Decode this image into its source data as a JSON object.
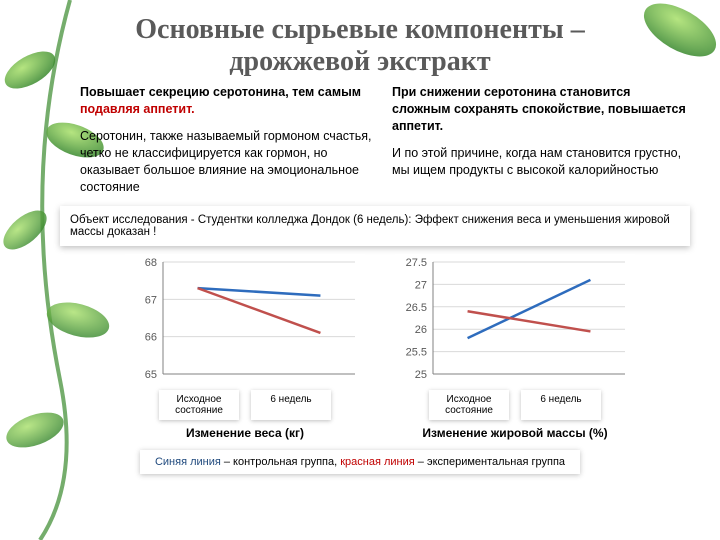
{
  "title_line1": "Основные сырьевые компоненты –",
  "title_line2": "дрожжевой экстракт",
  "left_col": {
    "para1_bold": "Повышает секрецию серотонина, тем самым ",
    "para1_red": "подавляя аппетит.",
    "para2": "Серотонин, также называемый гормоном счастья, четко не классифицируется как гормон, но оказывает большое влияние на эмоциональное состояние"
  },
  "right_col": {
    "para1_bold": "При снижении серотонина становится сложным сохранять спокойствие, повышается аппетит.",
    "para2": "И по этой причине, когда нам становится грустно, мы  ищем продукты с высокой калорийностью"
  },
  "study_bar": "Объект исследования - Студентки колледжа Дондок (6 недель):   Эффект снижения веса и уменьшения жировой массы доказан !",
  "chart1": {
    "type": "line",
    "title": "Изменение   веса (кг)",
    "ylim": [
      65,
      68
    ],
    "ytick_step": 1,
    "yticks": [
      65,
      66,
      67,
      68
    ],
    "x_categories": [
      "Исходное состояние",
      "6 недель"
    ],
    "series": [
      {
        "name": "control",
        "color": "#2e6cbd",
        "width": 2.5,
        "values": [
          67.3,
          67.1
        ]
      },
      {
        "name": "experimental",
        "color": "#c0504d",
        "width": 2.5,
        "values": [
          67.3,
          66.1
        ]
      }
    ],
    "axis_color": "#808080",
    "grid_color": "#d9d9d9",
    "background_color": "#ffffff",
    "tick_fontsize": 11,
    "label_fontsize": 10
  },
  "chart2": {
    "type": "line",
    "title": "Изменение жировой массы (%)",
    "ylim": [
      25,
      27.5
    ],
    "ytick_step": 0.5,
    "yticks": [
      25,
      25.5,
      26,
      26.5,
      27,
      27.5
    ],
    "x_categories": [
      "Исходное состояние",
      "6 недель"
    ],
    "series": [
      {
        "name": "control",
        "color": "#2e6cbd",
        "width": 2.5,
        "values": [
          25.8,
          27.1
        ]
      },
      {
        "name": "experimental",
        "color": "#c0504d",
        "width": 2.5,
        "values": [
          26.4,
          25.95
        ]
      }
    ],
    "axis_color": "#808080",
    "grid_color": "#d9d9d9",
    "background_color": "#ffffff",
    "tick_fontsize": 11,
    "label_fontsize": 10
  },
  "x_label_baseline": "Исходное\nсостояние",
  "x_label_6week": "6 недель",
  "legend": {
    "blue_label": "Синяя линия",
    "mid1": " – контрольная группа, ",
    "red_label": "красная линия",
    "mid2": " – экспериментальная группа"
  },
  "colors": {
    "title_color": "#5a5a5a",
    "text_black": "#000000",
    "accent_red": "#c00000",
    "accent_blue": "#1f497d",
    "leaf_green_dark": "#3b8a2e",
    "leaf_green_light": "#7fc24a",
    "leaf_stem": "#2f6e23"
  }
}
